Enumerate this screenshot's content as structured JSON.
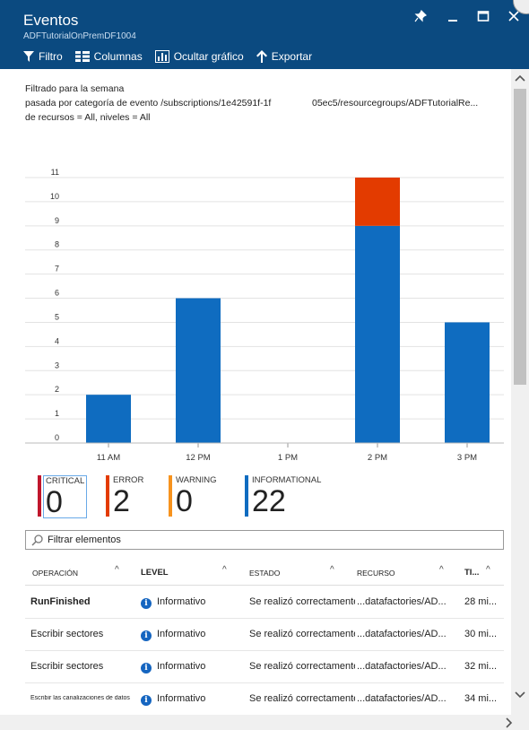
{
  "header": {
    "title": "Eventos",
    "subtitle": "ADFTutorialOnPremDF1004"
  },
  "toolbar": {
    "filter_label": "Filtro",
    "columns_label": "Columnas",
    "hide_chart_label": "Ocultar gráfico",
    "export_label": "Exportar"
  },
  "filter_description": {
    "line1": "Filtrado para la semana",
    "line2a": "pasada por categoría de evento /subscriptions/1e42591f-1f",
    "line2b": "05ec5/resourcegroups/ADFTutorialRe...",
    "line3": "de recursos = All, niveles = All"
  },
  "chart_data": {
    "type": "bar",
    "stacked": true,
    "categories": [
      "11 AM",
      "12 PM",
      "1 PM",
      "2 PM",
      "3 PM"
    ],
    "series": [
      {
        "name": "INFORMATIONAL",
        "values": [
          2,
          6,
          0,
          9,
          5
        ],
        "color": "#0f6cc0"
      },
      {
        "name": "ERROR",
        "values": [
          0,
          0,
          0,
          2,
          0
        ],
        "color": "#e33b00"
      }
    ],
    "ylim": [
      0,
      11
    ],
    "yticks": [
      "0",
      "1",
      "2",
      "3",
      "4",
      "5",
      "6",
      "7",
      "8",
      "9",
      "10",
      "11"
    ],
    "grid": true
  },
  "summary": [
    {
      "label": "CRITICAL",
      "value": "0",
      "color": "#c0162c"
    },
    {
      "label": "ERROR",
      "value": "2",
      "color": "#e33b00"
    },
    {
      "label": "WARNING",
      "value": "0",
      "color": "#f7931e"
    },
    {
      "label": "INFORMATIONAL",
      "value": "22",
      "color": "#0f6cc0"
    }
  ],
  "search": {
    "placeholder": "Filtrar elementos"
  },
  "table": {
    "columns": [
      "OPERACIÓN",
      "LEVEL",
      "ESTADO",
      "RECURSO",
      "TI..."
    ],
    "rows": [
      {
        "operation": "RunFinished",
        "level": "Informativo",
        "status": "Se realizó correctamente",
        "resource": "...datafactories/AD...",
        "time": "28 mi..."
      },
      {
        "operation": "Escribir sectores",
        "level": "Informativo",
        "status": "Se realizó correctamente",
        "resource": "...datafactories/AD...",
        "time": "30 mi..."
      },
      {
        "operation": "Escribir sectores",
        "level": "Informativo",
        "status": "Se realizó correctamente",
        "resource": "...datafactories/AD...",
        "time": "32 mi..."
      },
      {
        "operation": "Escribir las canalizaciones de datos",
        "level": "Informativo",
        "status": "Se realizó correctamente",
        "resource": "...datafactories/AD...",
        "time": "34 mi..."
      }
    ]
  }
}
